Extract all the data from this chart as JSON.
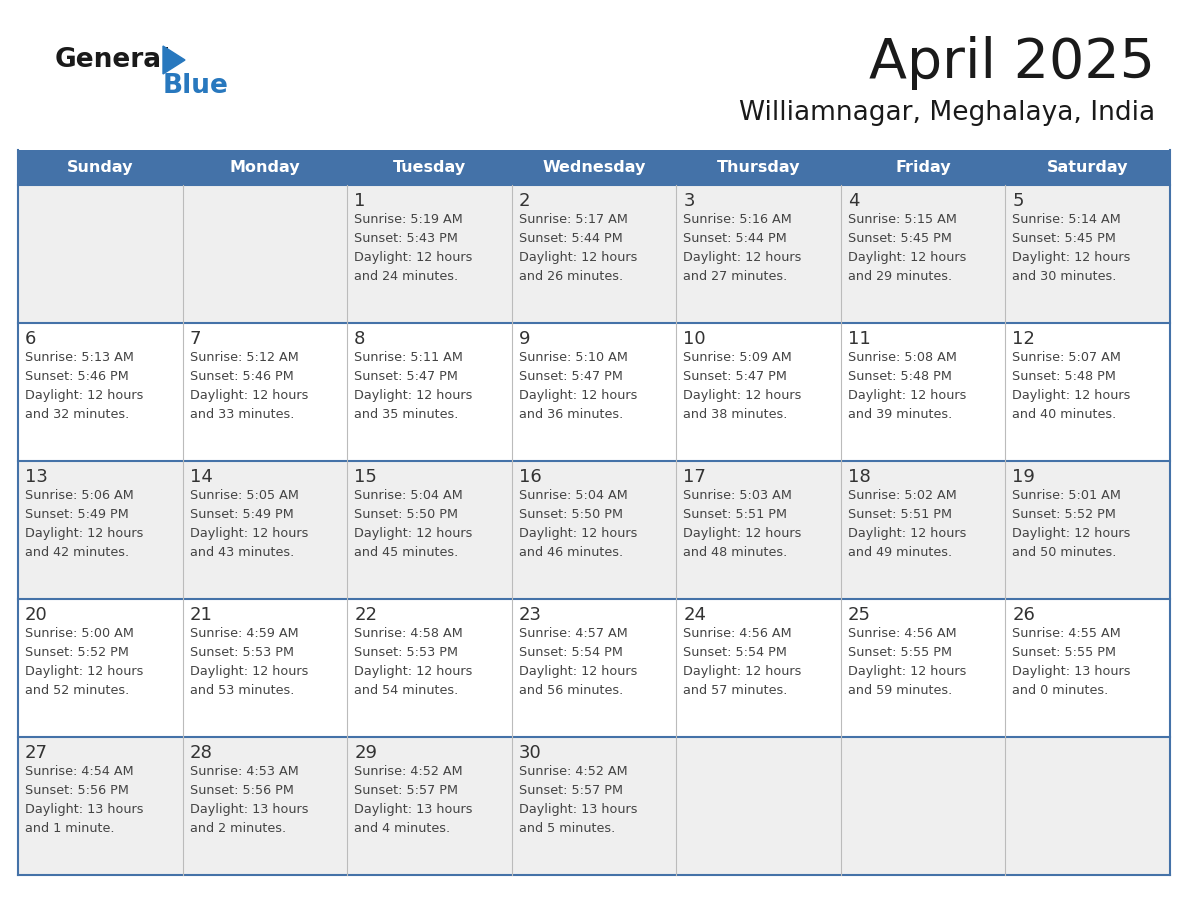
{
  "title": "April 2025",
  "subtitle": "Williamnagar, Meghalaya, India",
  "header_bg": "#4472a8",
  "header_text": "#ffffff",
  "day_names": [
    "Sunday",
    "Monday",
    "Tuesday",
    "Wednesday",
    "Thursday",
    "Friday",
    "Saturday"
  ],
  "row_bg_odd": "#efefef",
  "row_bg_even": "#ffffff",
  "cell_border": "#4472a8",
  "date_color": "#333333",
  "text_color": "#444444",
  "logo_general_color": "#1a1a1a",
  "logo_blue_color": "#2878be",
  "weeks": [
    [
      {
        "day": "",
        "sunrise": "",
        "sunset": "",
        "daylight": ""
      },
      {
        "day": "",
        "sunrise": "",
        "sunset": "",
        "daylight": ""
      },
      {
        "day": "1",
        "sunrise": "Sunrise: 5:19 AM",
        "sunset": "Sunset: 5:43 PM",
        "daylight": "Daylight: 12 hours\nand 24 minutes."
      },
      {
        "day": "2",
        "sunrise": "Sunrise: 5:17 AM",
        "sunset": "Sunset: 5:44 PM",
        "daylight": "Daylight: 12 hours\nand 26 minutes."
      },
      {
        "day": "3",
        "sunrise": "Sunrise: 5:16 AM",
        "sunset": "Sunset: 5:44 PM",
        "daylight": "Daylight: 12 hours\nand 27 minutes."
      },
      {
        "day": "4",
        "sunrise": "Sunrise: 5:15 AM",
        "sunset": "Sunset: 5:45 PM",
        "daylight": "Daylight: 12 hours\nand 29 minutes."
      },
      {
        "day": "5",
        "sunrise": "Sunrise: 5:14 AM",
        "sunset": "Sunset: 5:45 PM",
        "daylight": "Daylight: 12 hours\nand 30 minutes."
      }
    ],
    [
      {
        "day": "6",
        "sunrise": "Sunrise: 5:13 AM",
        "sunset": "Sunset: 5:46 PM",
        "daylight": "Daylight: 12 hours\nand 32 minutes."
      },
      {
        "day": "7",
        "sunrise": "Sunrise: 5:12 AM",
        "sunset": "Sunset: 5:46 PM",
        "daylight": "Daylight: 12 hours\nand 33 minutes."
      },
      {
        "day": "8",
        "sunrise": "Sunrise: 5:11 AM",
        "sunset": "Sunset: 5:47 PM",
        "daylight": "Daylight: 12 hours\nand 35 minutes."
      },
      {
        "day": "9",
        "sunrise": "Sunrise: 5:10 AM",
        "sunset": "Sunset: 5:47 PM",
        "daylight": "Daylight: 12 hours\nand 36 minutes."
      },
      {
        "day": "10",
        "sunrise": "Sunrise: 5:09 AM",
        "sunset": "Sunset: 5:47 PM",
        "daylight": "Daylight: 12 hours\nand 38 minutes."
      },
      {
        "day": "11",
        "sunrise": "Sunrise: 5:08 AM",
        "sunset": "Sunset: 5:48 PM",
        "daylight": "Daylight: 12 hours\nand 39 minutes."
      },
      {
        "day": "12",
        "sunrise": "Sunrise: 5:07 AM",
        "sunset": "Sunset: 5:48 PM",
        "daylight": "Daylight: 12 hours\nand 40 minutes."
      }
    ],
    [
      {
        "day": "13",
        "sunrise": "Sunrise: 5:06 AM",
        "sunset": "Sunset: 5:49 PM",
        "daylight": "Daylight: 12 hours\nand 42 minutes."
      },
      {
        "day": "14",
        "sunrise": "Sunrise: 5:05 AM",
        "sunset": "Sunset: 5:49 PM",
        "daylight": "Daylight: 12 hours\nand 43 minutes."
      },
      {
        "day": "15",
        "sunrise": "Sunrise: 5:04 AM",
        "sunset": "Sunset: 5:50 PM",
        "daylight": "Daylight: 12 hours\nand 45 minutes."
      },
      {
        "day": "16",
        "sunrise": "Sunrise: 5:04 AM",
        "sunset": "Sunset: 5:50 PM",
        "daylight": "Daylight: 12 hours\nand 46 minutes."
      },
      {
        "day": "17",
        "sunrise": "Sunrise: 5:03 AM",
        "sunset": "Sunset: 5:51 PM",
        "daylight": "Daylight: 12 hours\nand 48 minutes."
      },
      {
        "day": "18",
        "sunrise": "Sunrise: 5:02 AM",
        "sunset": "Sunset: 5:51 PM",
        "daylight": "Daylight: 12 hours\nand 49 minutes."
      },
      {
        "day": "19",
        "sunrise": "Sunrise: 5:01 AM",
        "sunset": "Sunset: 5:52 PM",
        "daylight": "Daylight: 12 hours\nand 50 minutes."
      }
    ],
    [
      {
        "day": "20",
        "sunrise": "Sunrise: 5:00 AM",
        "sunset": "Sunset: 5:52 PM",
        "daylight": "Daylight: 12 hours\nand 52 minutes."
      },
      {
        "day": "21",
        "sunrise": "Sunrise: 4:59 AM",
        "sunset": "Sunset: 5:53 PM",
        "daylight": "Daylight: 12 hours\nand 53 minutes."
      },
      {
        "day": "22",
        "sunrise": "Sunrise: 4:58 AM",
        "sunset": "Sunset: 5:53 PM",
        "daylight": "Daylight: 12 hours\nand 54 minutes."
      },
      {
        "day": "23",
        "sunrise": "Sunrise: 4:57 AM",
        "sunset": "Sunset: 5:54 PM",
        "daylight": "Daylight: 12 hours\nand 56 minutes."
      },
      {
        "day": "24",
        "sunrise": "Sunrise: 4:56 AM",
        "sunset": "Sunset: 5:54 PM",
        "daylight": "Daylight: 12 hours\nand 57 minutes."
      },
      {
        "day": "25",
        "sunrise": "Sunrise: 4:56 AM",
        "sunset": "Sunset: 5:55 PM",
        "daylight": "Daylight: 12 hours\nand 59 minutes."
      },
      {
        "day": "26",
        "sunrise": "Sunrise: 4:55 AM",
        "sunset": "Sunset: 5:55 PM",
        "daylight": "Daylight: 13 hours\nand 0 minutes."
      }
    ],
    [
      {
        "day": "27",
        "sunrise": "Sunrise: 4:54 AM",
        "sunset": "Sunset: 5:56 PM",
        "daylight": "Daylight: 13 hours\nand 1 minute."
      },
      {
        "day": "28",
        "sunrise": "Sunrise: 4:53 AM",
        "sunset": "Sunset: 5:56 PM",
        "daylight": "Daylight: 13 hours\nand 2 minutes."
      },
      {
        "day": "29",
        "sunrise": "Sunrise: 4:52 AM",
        "sunset": "Sunset: 5:57 PM",
        "daylight": "Daylight: 13 hours\nand 4 minutes."
      },
      {
        "day": "30",
        "sunrise": "Sunrise: 4:52 AM",
        "sunset": "Sunset: 5:57 PM",
        "daylight": "Daylight: 13 hours\nand 5 minutes."
      },
      {
        "day": "",
        "sunrise": "",
        "sunset": "",
        "daylight": ""
      },
      {
        "day": "",
        "sunrise": "",
        "sunset": "",
        "daylight": ""
      },
      {
        "day": "",
        "sunrise": "",
        "sunset": "",
        "daylight": ""
      }
    ]
  ]
}
